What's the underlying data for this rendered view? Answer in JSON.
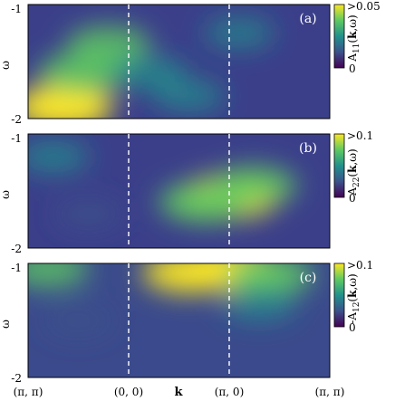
{
  "chart_data": [
    {
      "type": "heatmap",
      "panel_label": "(a)",
      "ylabel": "ω",
      "ylim": [
        -2,
        -1
      ],
      "y_ticks": [
        "-1",
        "-2"
      ],
      "colorbar": {
        "label": "A11(k,ω)",
        "label_prefix": "A",
        "label_sub": "11",
        "label_bold": "k",
        "label_tail": ",ω)",
        "max_label": ">0.05",
        "min_label": "0",
        "range": [
          0,
          0.05
        ]
      },
      "hotspots": [
        {
          "k": 0.35,
          "w": -1.9,
          "intensity": 1.0
        },
        {
          "k": 0.55,
          "w": -1.6,
          "intensity": 0.8
        },
        {
          "k": 0.8,
          "w": -1.35,
          "intensity": 0.65
        },
        {
          "k": 1.2,
          "w": -1.6,
          "intensity": 0.5
        },
        {
          "k": 1.6,
          "w": -1.8,
          "intensity": 0.4
        },
        {
          "k": 2.1,
          "w": -1.25,
          "intensity": 0.35
        }
      ]
    },
    {
      "type": "heatmap",
      "panel_label": "(b)",
      "ylabel": "ω",
      "ylim": [
        -2,
        -1
      ],
      "y_ticks": [
        "-1",
        "-2"
      ],
      "colorbar": {
        "label": "A22(k,ω)",
        "label_prefix": "A",
        "label_sub": "22",
        "label_bold": "k",
        "label_tail": ",ω)",
        "max_label": ">0.1",
        "min_label": "0",
        "range": [
          0,
          0.1
        ]
      },
      "hotspots": [
        {
          "k": 2.0,
          "w": -1.55,
          "intensity": 1.0
        },
        {
          "k": 1.75,
          "w": -1.6,
          "intensity": 0.8
        },
        {
          "k": 2.25,
          "w": -1.45,
          "intensity": 0.7
        },
        {
          "k": 0.25,
          "w": -1.2,
          "intensity": 0.4
        },
        {
          "k": 0.6,
          "w": -1.7,
          "intensity": 0.3
        }
      ]
    },
    {
      "type": "heatmap",
      "panel_label": "(c)",
      "ylabel": "ω",
      "ylim": [
        -2,
        -1
      ],
      "y_ticks": [
        "-1",
        "-2"
      ],
      "colorbar": {
        "label": "-A12(k,ω)",
        "label_prefix": "-A",
        "label_sub": "12",
        "label_bold": "k",
        "label_tail": ",ω)",
        "max_label": ">0.1",
        "min_label": "0",
        "range": [
          0,
          0.1
        ]
      },
      "hotspots": [
        {
          "k": 2.0,
          "w": -1.05,
          "intensity": 1.0
        },
        {
          "k": 1.6,
          "w": -1.08,
          "intensity": 0.85
        },
        {
          "k": 2.4,
          "w": -1.1,
          "intensity": 0.75
        },
        {
          "k": 0.2,
          "w": -1.05,
          "intensity": 0.6
        },
        {
          "k": 2.3,
          "w": -1.35,
          "intensity": 0.45
        },
        {
          "k": 0.5,
          "w": -1.5,
          "intensity": 0.3
        }
      ]
    }
  ],
  "x_axis": {
    "label": "k",
    "ticks": [
      {
        "label": "(π, π)",
        "pos": 0
      },
      {
        "label": "(0, 0)",
        "pos": 1
      },
      {
        "label": "(π, 0)",
        "pos": 2
      },
      {
        "label": "(π, π)",
        "pos": 3
      }
    ],
    "range": [
      0,
      3
    ],
    "dashed_lines_at": [
      1,
      2
    ]
  },
  "colors": {
    "viridis_stops": [
      "#440154",
      "#3b528b",
      "#21918c",
      "#5ec962",
      "#fde725"
    ],
    "dashed_line": "#ffffff",
    "panel_label": "#ffffff"
  }
}
